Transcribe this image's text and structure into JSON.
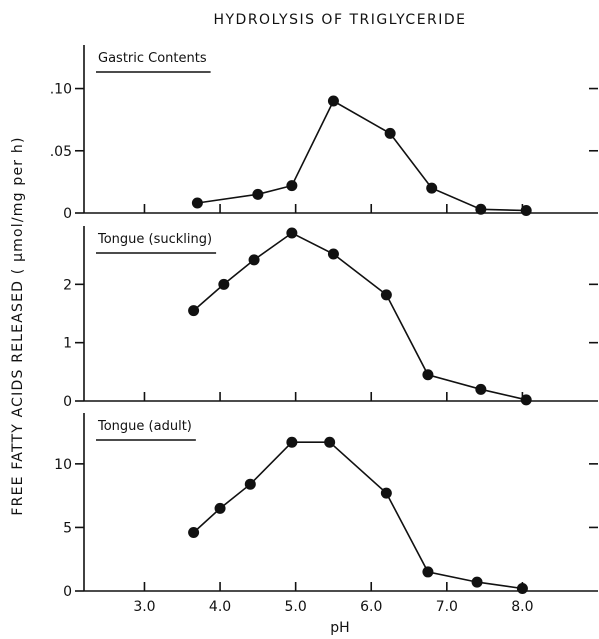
{
  "chart_data": [
    {
      "type": "line",
      "title": "HYDROLYSIS OF TRIGLYCERIDE",
      "panel_label": "Gastric Contents",
      "ylabel": "FREE FATTY ACIDS RELEASED ( μmol/mg per h)",
      "xlabel": "pH",
      "ylim": [
        0,
        0.135
      ],
      "yticks": [
        {
          "value": 0,
          "label": "0"
        },
        {
          "value": 0.05,
          "label": ".05"
        },
        {
          "value": 0.1,
          "label": ".10"
        }
      ],
      "x": [
        3.7,
        4.5,
        4.95,
        5.5,
        6.25,
        6.8,
        7.45,
        8.05
      ],
      "values": [
        0.008,
        0.015,
        0.022,
        0.09,
        0.064,
        0.02,
        0.003,
        0.002
      ]
    },
    {
      "type": "line",
      "panel_label": "Tongue (suckling)",
      "ylim": [
        0,
        3.0
      ],
      "yticks": [
        {
          "value": 0,
          "label": "0"
        },
        {
          "value": 1,
          "label": "1"
        },
        {
          "value": 2,
          "label": "2"
        }
      ],
      "x": [
        3.65,
        4.05,
        4.45,
        4.95,
        5.5,
        6.2,
        6.75,
        7.45,
        8.05
      ],
      "values": [
        1.55,
        2.0,
        2.42,
        2.88,
        2.52,
        1.82,
        0.45,
        0.2,
        0.02
      ]
    },
    {
      "type": "line",
      "panel_label": "Tongue (adult)",
      "ylim": [
        0,
        14.0
      ],
      "yticks": [
        {
          "value": 0,
          "label": "0"
        },
        {
          "value": 5,
          "label": "5"
        },
        {
          "value": 10,
          "label": "10"
        }
      ],
      "xlim": [
        2.2,
        9.0
      ],
      "xticks": [
        {
          "value": 3.0,
          "label": "3.0"
        },
        {
          "value": 4.0,
          "label": "4.0"
        },
        {
          "value": 5.0,
          "label": "5.0"
        },
        {
          "value": 6.0,
          "label": "6.0"
        },
        {
          "value": 7.0,
          "label": "7.0"
        },
        {
          "value": 8.0,
          "label": "8.0"
        }
      ],
      "x": [
        3.65,
        4.0,
        4.4,
        4.95,
        5.45,
        6.2,
        6.75,
        7.4,
        8.0
      ],
      "values": [
        4.6,
        6.5,
        8.4,
        11.7,
        11.7,
        7.7,
        1.5,
        0.7,
        0.2
      ]
    }
  ]
}
